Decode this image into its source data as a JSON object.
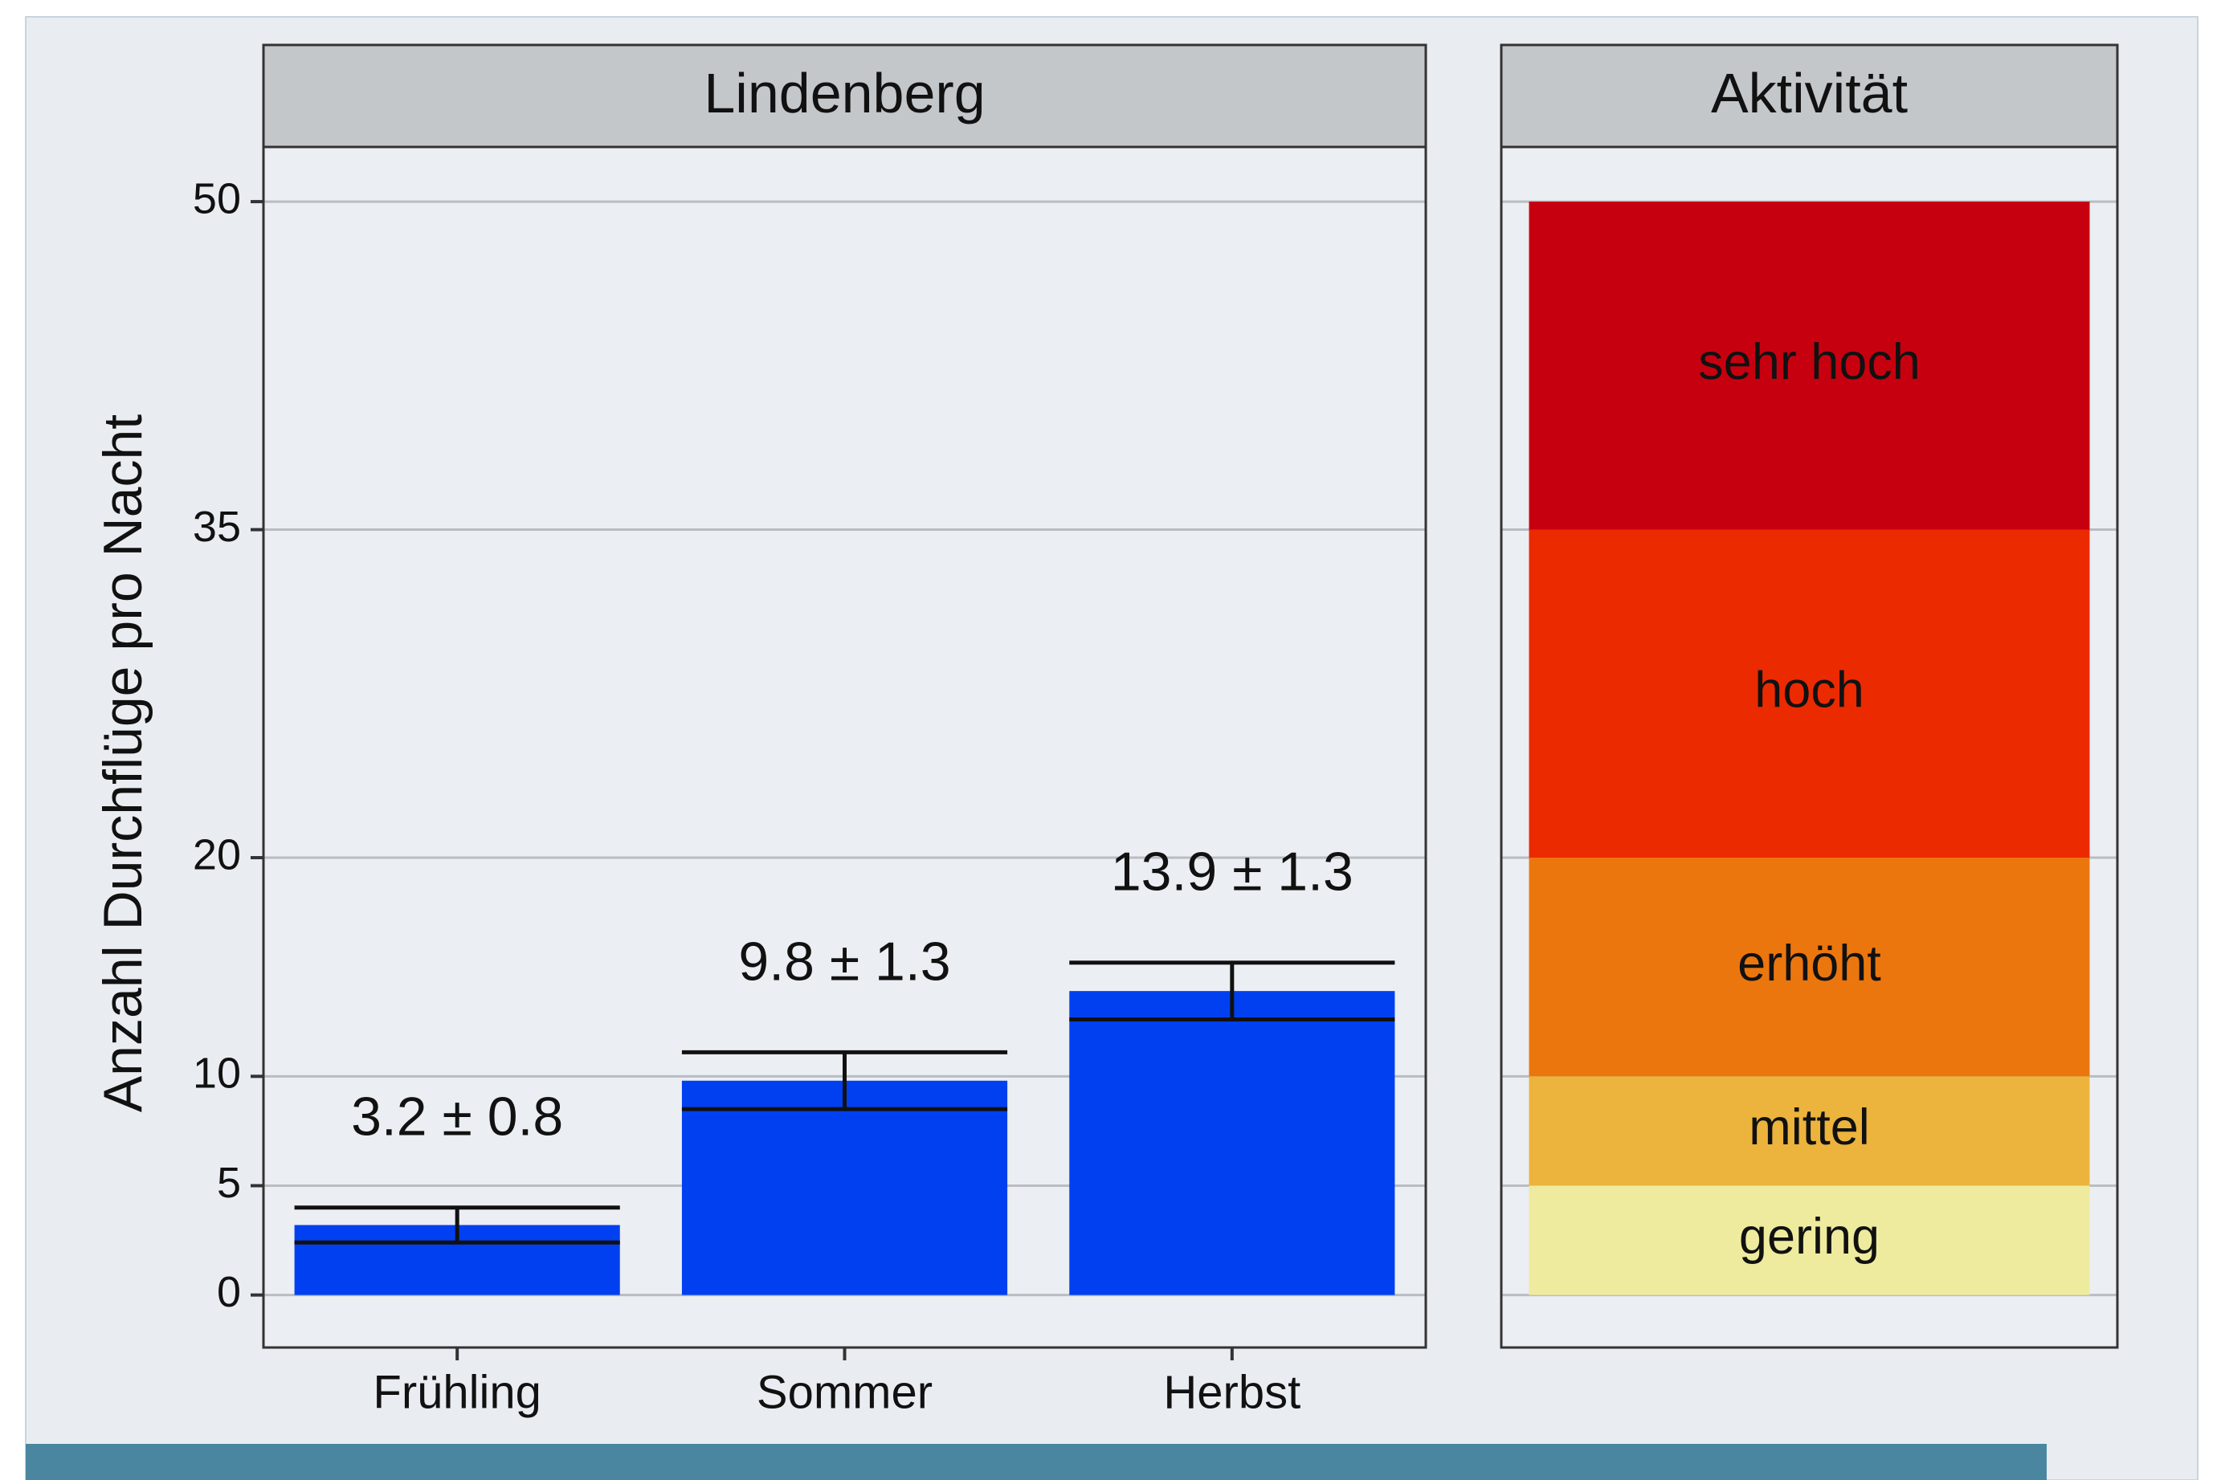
{
  "chart_data": [
    {
      "type": "bar",
      "title": "Lindenberg",
      "y_label": "Anzahl Durchflüge pro Nacht",
      "categories": [
        "Frühling",
        "Sommer",
        "Herbst"
      ],
      "values": [
        3.2,
        9.8,
        13.9
      ],
      "errors": [
        0.8,
        1.3,
        1.3
      ],
      "value_labels": [
        "3.2 ± 0.8",
        "9.8 ± 1.3",
        "13.9 ± 1.3"
      ],
      "color": "#0040f0",
      "ylim": [
        -2.4,
        52.5
      ],
      "yticks": [
        0,
        5,
        10,
        20,
        35,
        50
      ],
      "grid": true
    },
    {
      "type": "stacked_bar",
      "title": "Aktivität",
      "series": [
        {
          "name": "gering",
          "color": "#eeeb9e",
          "values": [
            5
          ]
        },
        {
          "name": "mittel",
          "color": "#ecb43c",
          "values": [
            5
          ]
        },
        {
          "name": "erhöht",
          "color": "#ec760e",
          "values": [
            10
          ]
        },
        {
          "name": "hoch",
          "color": "#ec2a00",
          "values": [
            15
          ]
        },
        {
          "name": "sehr hoch",
          "color": "#c70010",
          "values": [
            15
          ]
        }
      ],
      "ylim": [
        -2.4,
        52.5
      ],
      "grid": true
    }
  ]
}
